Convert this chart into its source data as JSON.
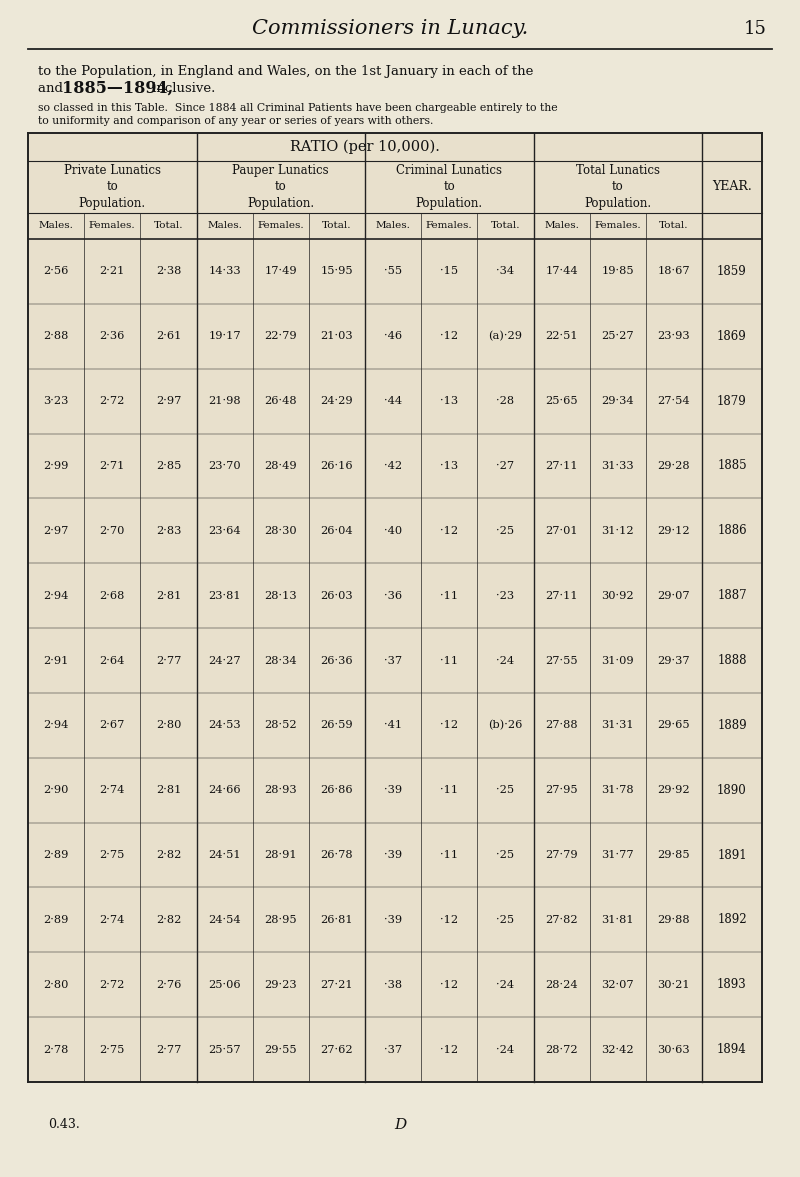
{
  "page_header_italic": "Commissioners in Lunacy.",
  "page_number": "15",
  "intro_line1": "to the Population, in England and Wales, on the 1st January in each of the",
  "intro_line2_pre": "and ",
  "intro_line2_bold": "1885—1894,",
  "intro_line2_post": " inclusive.",
  "note_line1": "so classed in this Table.  Since 1884 all Criminal Patients have been chargeable entirely to the",
  "note_line2": "to uniformity and comparison of any year or series of years with others.",
  "ratio_header": "RATIO (per 10,000).",
  "col_groups": [
    {
      "name": "Private Lunatics\nto\nPopulation.",
      "cols": [
        "Males.",
        "Females.",
        "Total."
      ]
    },
    {
      "name": "Pauper Lunatics\nto\nPopulation.",
      "cols": [
        "Males.",
        "Females.",
        "Total."
      ]
    },
    {
      "name": "Criminal Lunatics\nto\nPopulation.",
      "cols": [
        "Males.",
        "Females.",
        "Total."
      ]
    },
    {
      "name": "Total Lunatics\nto\nPopulation.",
      "cols": [
        "Males.",
        "Females.",
        "Total."
      ]
    }
  ],
  "year_col_header": "YEAR.",
  "rows": [
    {
      "year": "1859",
      "vals": [
        "2·56",
        "2·21",
        "2·38",
        "14·33",
        "17·49",
        "15·95",
        "·55",
        "·15",
        "·34",
        "17·44",
        "19·85",
        "18·67"
      ]
    },
    {
      "year": "1869",
      "vals": [
        "2·88",
        "2·36",
        "2·61",
        "19·17",
        "22·79",
        "21·03",
        "·46",
        "·12",
        "(a)·29",
        "22·51",
        "25·27",
        "23·93"
      ]
    },
    {
      "year": "1879",
      "vals": [
        "3·23",
        "2·72",
        "2·97",
        "21·98",
        "26·48",
        "24·29",
        "·44",
        "·13",
        "·28",
        "25·65",
        "29·34",
        "27·54"
      ]
    },
    {
      "year": "1885",
      "vals": [
        "2·99",
        "2·71",
        "2·85",
        "23·70",
        "28·49",
        "26·16",
        "·42",
        "·13",
        "·27",
        "27·11",
        "31·33",
        "29·28"
      ]
    },
    {
      "year": "1886",
      "vals": [
        "2·97",
        "2·70",
        "2·83",
        "23·64",
        "28·30",
        "26·04",
        "·40",
        "·12",
        "·25",
        "27·01",
        "31·12",
        "29·12"
      ]
    },
    {
      "year": "1887",
      "vals": [
        "2·94",
        "2·68",
        "2·81",
        "23·81",
        "28·13",
        "26·03",
        "·36",
        "·11",
        "·23",
        "27·11",
        "30·92",
        "29·07"
      ]
    },
    {
      "year": "1888",
      "vals": [
        "2·91",
        "2·64",
        "2·77",
        "24·27",
        "28·34",
        "26·36",
        "·37",
        "·11",
        "·24",
        "27·55",
        "31·09",
        "29·37"
      ]
    },
    {
      "year": "1889",
      "vals": [
        "2·94",
        "2·67",
        "2·80",
        "24·53",
        "28·52",
        "26·59",
        "·41",
        "·12",
        "(b)·26",
        "27·88",
        "31·31",
        "29·65"
      ]
    },
    {
      "year": "1890",
      "vals": [
        "2·90",
        "2·74",
        "2·81",
        "24·66",
        "28·93",
        "26·86",
        "·39",
        "·11",
        "·25",
        "27·95",
        "31·78",
        "29·92"
      ]
    },
    {
      "year": "1891",
      "vals": [
        "2·89",
        "2·75",
        "2·82",
        "24·51",
        "28·91",
        "26·78",
        "·39",
        "·11",
        "·25",
        "27·79",
        "31·77",
        "29·85"
      ]
    },
    {
      "year": "1892",
      "vals": [
        "2·89",
        "2·74",
        "2·82",
        "24·54",
        "28·95",
        "26·81",
        "·39",
        "·12",
        "·25",
        "27·82",
        "31·81",
        "29·88"
      ]
    },
    {
      "year": "1893",
      "vals": [
        "2·80",
        "2·72",
        "2·76",
        "25·06",
        "29·23",
        "27·21",
        "·38",
        "·12",
        "·24",
        "28·24",
        "32·07",
        "30·21"
      ]
    },
    {
      "year": "1894",
      "vals": [
        "2·78",
        "2·75",
        "2·77",
        "25·57",
        "29·55",
        "27·62",
        "·37",
        "·12",
        "·24",
        "28·72",
        "32·42",
        "30·63"
      ]
    }
  ],
  "footer_left": "0.43.",
  "footer_center": "D",
  "bg_color": "#ede8d8",
  "table_bg": "#e8e0cc",
  "text_color": "#111111",
  "line_color": "#222222"
}
